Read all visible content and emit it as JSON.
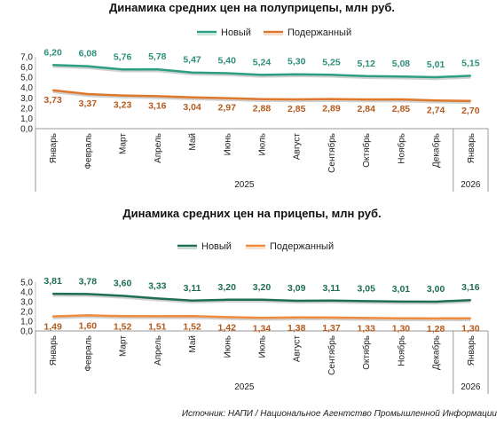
{
  "source_note": "Источник: НАПИ / Национальное Агентство Промышленной Информации",
  "chart_data": [
    {
      "type": "line",
      "title": "Динамика средних цен на полуприцепы, млн руб.",
      "legend_position": "top-center",
      "categories": [
        "Январь",
        "Февраль",
        "Март",
        "Апрель",
        "Май",
        "Июнь",
        "Июль",
        "Август",
        "Сентябрь",
        "Октябрь",
        "Ноябрь",
        "Декабрь",
        "Январь"
      ],
      "year_groups": [
        {
          "label": "2025",
          "count": 12
        },
        {
          "label": "2026",
          "count": 1
        }
      ],
      "ylim": [
        0,
        7
      ],
      "yticks": [
        "0,0",
        "1,0",
        "2,0",
        "3,0",
        "4,0",
        "5,0",
        "6,0",
        "7,0"
      ],
      "series": [
        {
          "name": "Новый",
          "color": "#2e9e82",
          "values": [
            6.2,
            6.08,
            5.76,
            5.78,
            5.47,
            5.4,
            5.24,
            5.3,
            5.25,
            5.12,
            5.08,
            5.01,
            5.15
          ],
          "labels": [
            "6,20",
            "6,08",
            "5,76",
            "5,78",
            "5,47",
            "5,40",
            "5,24",
            "5,30",
            "5,25",
            "5,12",
            "5,08",
            "5,01",
            "5,15"
          ],
          "label_color": "#2e8f7a"
        },
        {
          "name": "Подержанный",
          "color": "#e0782c",
          "values": [
            3.73,
            3.37,
            3.23,
            3.16,
            3.04,
            2.97,
            2.88,
            2.85,
            2.89,
            2.84,
            2.85,
            2.74,
            2.7
          ],
          "labels": [
            "3,73",
            "3,37",
            "3,23",
            "3,16",
            "3,04",
            "2,97",
            "2,88",
            "2,85",
            "2,89",
            "2,84",
            "2,85",
            "2,74",
            "2,70"
          ],
          "label_color": "#b55a1c"
        }
      ]
    },
    {
      "type": "line",
      "title": "Динамика средних цен на прицепы, млн руб.",
      "legend_position": "top-center",
      "categories": [
        "Январь",
        "Февраль",
        "Март",
        "Апрель",
        "Май",
        "Июнь",
        "Июль",
        "Август",
        "Сентябрь",
        "Октябрь",
        "Ноябрь",
        "Декабрь",
        "Январь"
      ],
      "year_groups": [
        {
          "label": "2025",
          "count": 12
        },
        {
          "label": "2026",
          "count": 1
        }
      ],
      "ylim": [
        0,
        5
      ],
      "yticks": [
        "0,0",
        "1,0",
        "2,0",
        "3,0",
        "4,0",
        "5,0"
      ],
      "series": [
        {
          "name": "Новый",
          "color": "#1f6e4f",
          "values": [
            3.81,
            3.78,
            3.6,
            3.33,
            3.11,
            3.2,
            3.2,
            3.09,
            3.11,
            3.05,
            3.01,
            3.0,
            3.16
          ],
          "labels": [
            "3,81",
            "3,78",
            "3,60",
            "3,33",
            "3,11",
            "3,20",
            "3,20",
            "3,09",
            "3,11",
            "3,05",
            "3,01",
            "3,00",
            "3,16"
          ],
          "label_color": "#1f6e4f"
        },
        {
          "name": "Подержанный",
          "color": "#f08a3c",
          "values": [
            1.49,
            1.6,
            1.52,
            1.51,
            1.52,
            1.42,
            1.34,
            1.38,
            1.37,
            1.33,
            1.3,
            1.28,
            1.3
          ],
          "labels": [
            "1,49",
            "1,60",
            "1,52",
            "1,51",
            "1,52",
            "1,42",
            "1,34",
            "1,38",
            "1,37",
            "1,33",
            "1,30",
            "1,28",
            "1,30"
          ],
          "label_color": "#b55a1c"
        }
      ]
    }
  ]
}
